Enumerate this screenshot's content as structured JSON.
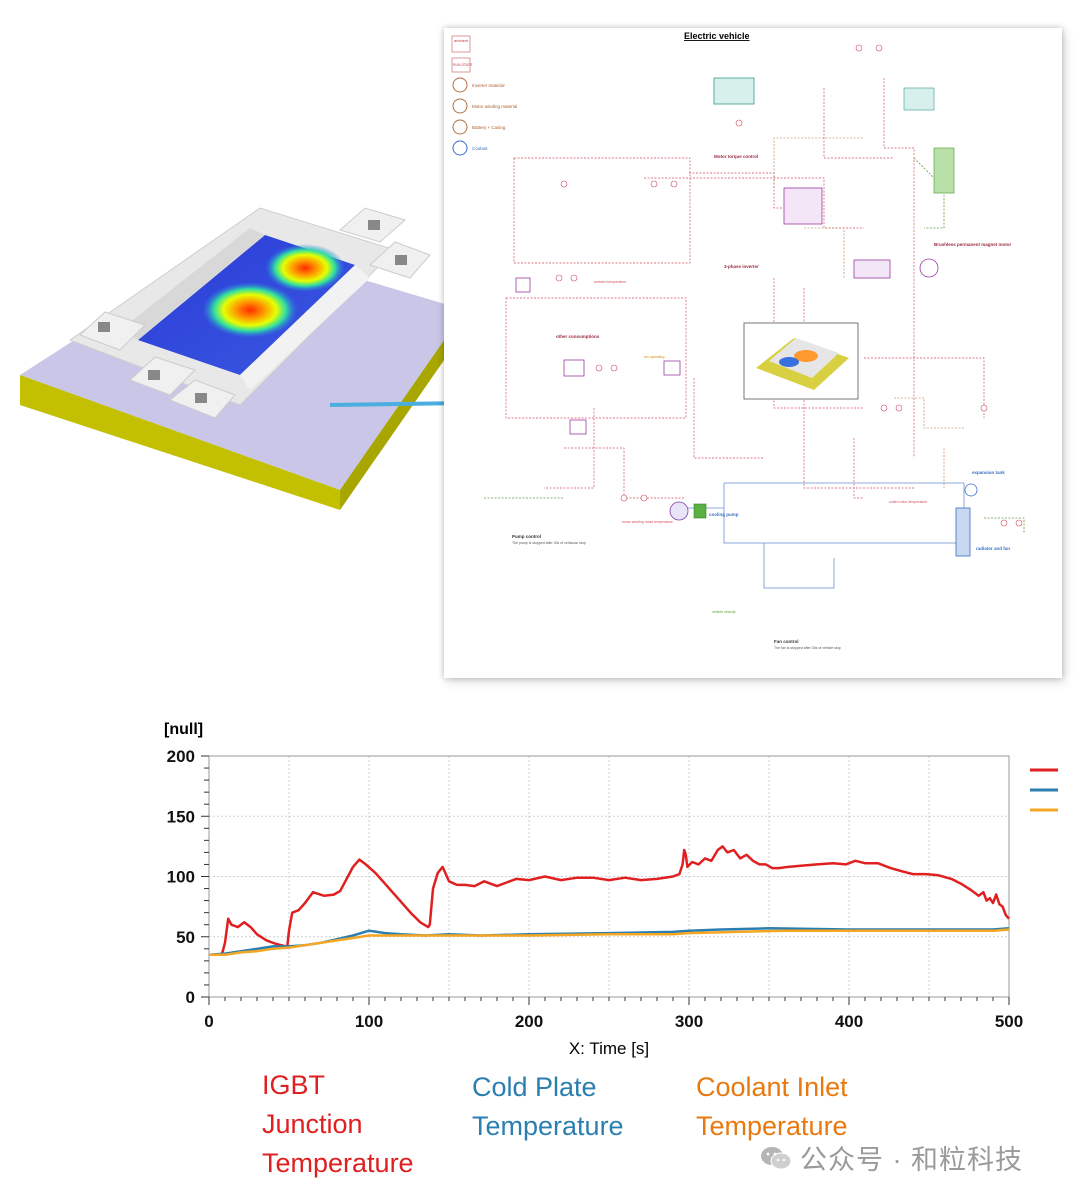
{
  "schematic": {
    "title": "Electric vehicle",
    "legend_items": [
      "Inverter material",
      "Motor winding material",
      "Battery + Casing",
      "Coolant"
    ],
    "badges": [
      "ambient",
      "RUN STATS"
    ],
    "labels": [
      "Motor torque control",
      "Brushless permanent magnet motor",
      "3-phase inverter",
      "other consumptions",
      "cooling pump",
      "radiator and fan",
      "expansion tank",
      "Pump control",
      "Fan control",
      "motor winding mass temperature",
      "outlet motor temperature",
      "ambient temperature",
      "vehicle velocity",
      "fan operating",
      "The pump is stopped after 30s of vehicular stop",
      "The fan is stopped after 30s of vehicle stop"
    ]
  },
  "chart_data": {
    "type": "line",
    "ylabel": "[null]",
    "xlabel": "X: Time [s]",
    "xlim": [
      0,
      500
    ],
    "ylim": [
      0,
      200
    ],
    "xticks": [
      0,
      100,
      200,
      300,
      400,
      500
    ],
    "yticks": [
      0,
      50,
      100,
      150,
      200
    ],
    "grid": true,
    "legend_placement": "right (line swatches only)",
    "series": [
      {
        "name": "IGBT Junction Temperature",
        "color": "#e02020",
        "points": [
          [
            0,
            35
          ],
          [
            8,
            35
          ],
          [
            10,
            45
          ],
          [
            12,
            65
          ],
          [
            14,
            60
          ],
          [
            18,
            58
          ],
          [
            22,
            62
          ],
          [
            26,
            58
          ],
          [
            30,
            52
          ],
          [
            36,
            47
          ],
          [
            42,
            44
          ],
          [
            48,
            42
          ],
          [
            49,
            43
          ],
          [
            50,
            55
          ],
          [
            52,
            70
          ],
          [
            56,
            72
          ],
          [
            60,
            78
          ],
          [
            65,
            87
          ],
          [
            72,
            84
          ],
          [
            78,
            85
          ],
          [
            82,
            88
          ],
          [
            86,
            98
          ],
          [
            90,
            108
          ],
          [
            94,
            114
          ],
          [
            98,
            110
          ],
          [
            104,
            103
          ],
          [
            110,
            94
          ],
          [
            118,
            82
          ],
          [
            126,
            70
          ],
          [
            132,
            62
          ],
          [
            137,
            58
          ],
          [
            138,
            60
          ],
          [
            140,
            90
          ],
          [
            143,
            103
          ],
          [
            146,
            108
          ],
          [
            150,
            96
          ],
          [
            155,
            93
          ],
          [
            160,
            93
          ],
          [
            166,
            92
          ],
          [
            172,
            96
          ],
          [
            180,
            92
          ],
          [
            186,
            95
          ],
          [
            192,
            98
          ],
          [
            200,
            97
          ],
          [
            210,
            100
          ],
          [
            220,
            97
          ],
          [
            230,
            99
          ],
          [
            240,
            99
          ],
          [
            250,
            97
          ],
          [
            260,
            99
          ],
          [
            270,
            97
          ],
          [
            280,
            98
          ],
          [
            290,
            100
          ],
          [
            294,
            102
          ],
          [
            296,
            110
          ],
          [
            297,
            122
          ],
          [
            298,
            118
          ],
          [
            299,
            108
          ],
          [
            302,
            112
          ],
          [
            306,
            110
          ],
          [
            310,
            115
          ],
          [
            314,
            113
          ],
          [
            318,
            122
          ],
          [
            321,
            125
          ],
          [
            324,
            120
          ],
          [
            328,
            122
          ],
          [
            332,
            115
          ],
          [
            336,
            118
          ],
          [
            340,
            113
          ],
          [
            344,
            110
          ],
          [
            348,
            110
          ],
          [
            352,
            107
          ],
          [
            356,
            107
          ],
          [
            362,
            108
          ],
          [
            370,
            109
          ],
          [
            380,
            110
          ],
          [
            390,
            111
          ],
          [
            398,
            110
          ],
          [
            404,
            113
          ],
          [
            410,
            111
          ],
          [
            418,
            111
          ],
          [
            426,
            107
          ],
          [
            434,
            104
          ],
          [
            440,
            102
          ],
          [
            448,
            102
          ],
          [
            456,
            101
          ],
          [
            464,
            98
          ],
          [
            470,
            94
          ],
          [
            476,
            89
          ],
          [
            481,
            84
          ],
          [
            484,
            87
          ],
          [
            486,
            80
          ],
          [
            488,
            82
          ],
          [
            490,
            78
          ],
          [
            492,
            85
          ],
          [
            494,
            77
          ],
          [
            496,
            75
          ],
          [
            498,
            68
          ],
          [
            500,
            65
          ]
        ]
      },
      {
        "name": "Cold Plate Temperature",
        "color": "#2b7fb0",
        "points": [
          [
            0,
            35
          ],
          [
            10,
            36
          ],
          [
            20,
            38
          ],
          [
            30,
            40
          ],
          [
            40,
            42
          ],
          [
            50,
            42
          ],
          [
            60,
            43
          ],
          [
            70,
            45
          ],
          [
            80,
            48
          ],
          [
            90,
            51
          ],
          [
            95,
            53
          ],
          [
            100,
            55
          ],
          [
            105,
            54
          ],
          [
            110,
            53
          ],
          [
            120,
            52
          ],
          [
            135,
            51
          ],
          [
            150,
            52
          ],
          [
            170,
            51
          ],
          [
            200,
            52
          ],
          [
            250,
            53
          ],
          [
            290,
            54
          ],
          [
            300,
            55
          ],
          [
            320,
            56
          ],
          [
            350,
            57
          ],
          [
            400,
            56
          ],
          [
            450,
            56
          ],
          [
            490,
            56
          ],
          [
            500,
            57
          ]
        ]
      },
      {
        "name": "Coolant Inlet Temperature",
        "color": "#f5a623",
        "points": [
          [
            0,
            35
          ],
          [
            10,
            35
          ],
          [
            20,
            37
          ],
          [
            30,
            38
          ],
          [
            40,
            40
          ],
          [
            50,
            41
          ],
          [
            60,
            43
          ],
          [
            70,
            45
          ],
          [
            80,
            47
          ],
          [
            90,
            49
          ],
          [
            100,
            51
          ],
          [
            120,
            51
          ],
          [
            150,
            51
          ],
          [
            200,
            51
          ],
          [
            250,
            52
          ],
          [
            290,
            52
          ],
          [
            300,
            53
          ],
          [
            330,
            54
          ],
          [
            360,
            55
          ],
          [
            400,
            55
          ],
          [
            450,
            55
          ],
          [
            490,
            55
          ],
          [
            500,
            56
          ]
        ]
      }
    ]
  },
  "legend_text": {
    "igbt": "IGBT\nJunction\nTemperature",
    "cold_plate": "Cold Plate\nTemperature",
    "coolant_inlet": "Coolant Inlet\nTemperature"
  },
  "watermark": "公众号 · 和粒科技",
  "colors": {
    "igbt": "#e02020",
    "cold_plate": "#2b7fb0",
    "coolant": "#e8790f"
  }
}
